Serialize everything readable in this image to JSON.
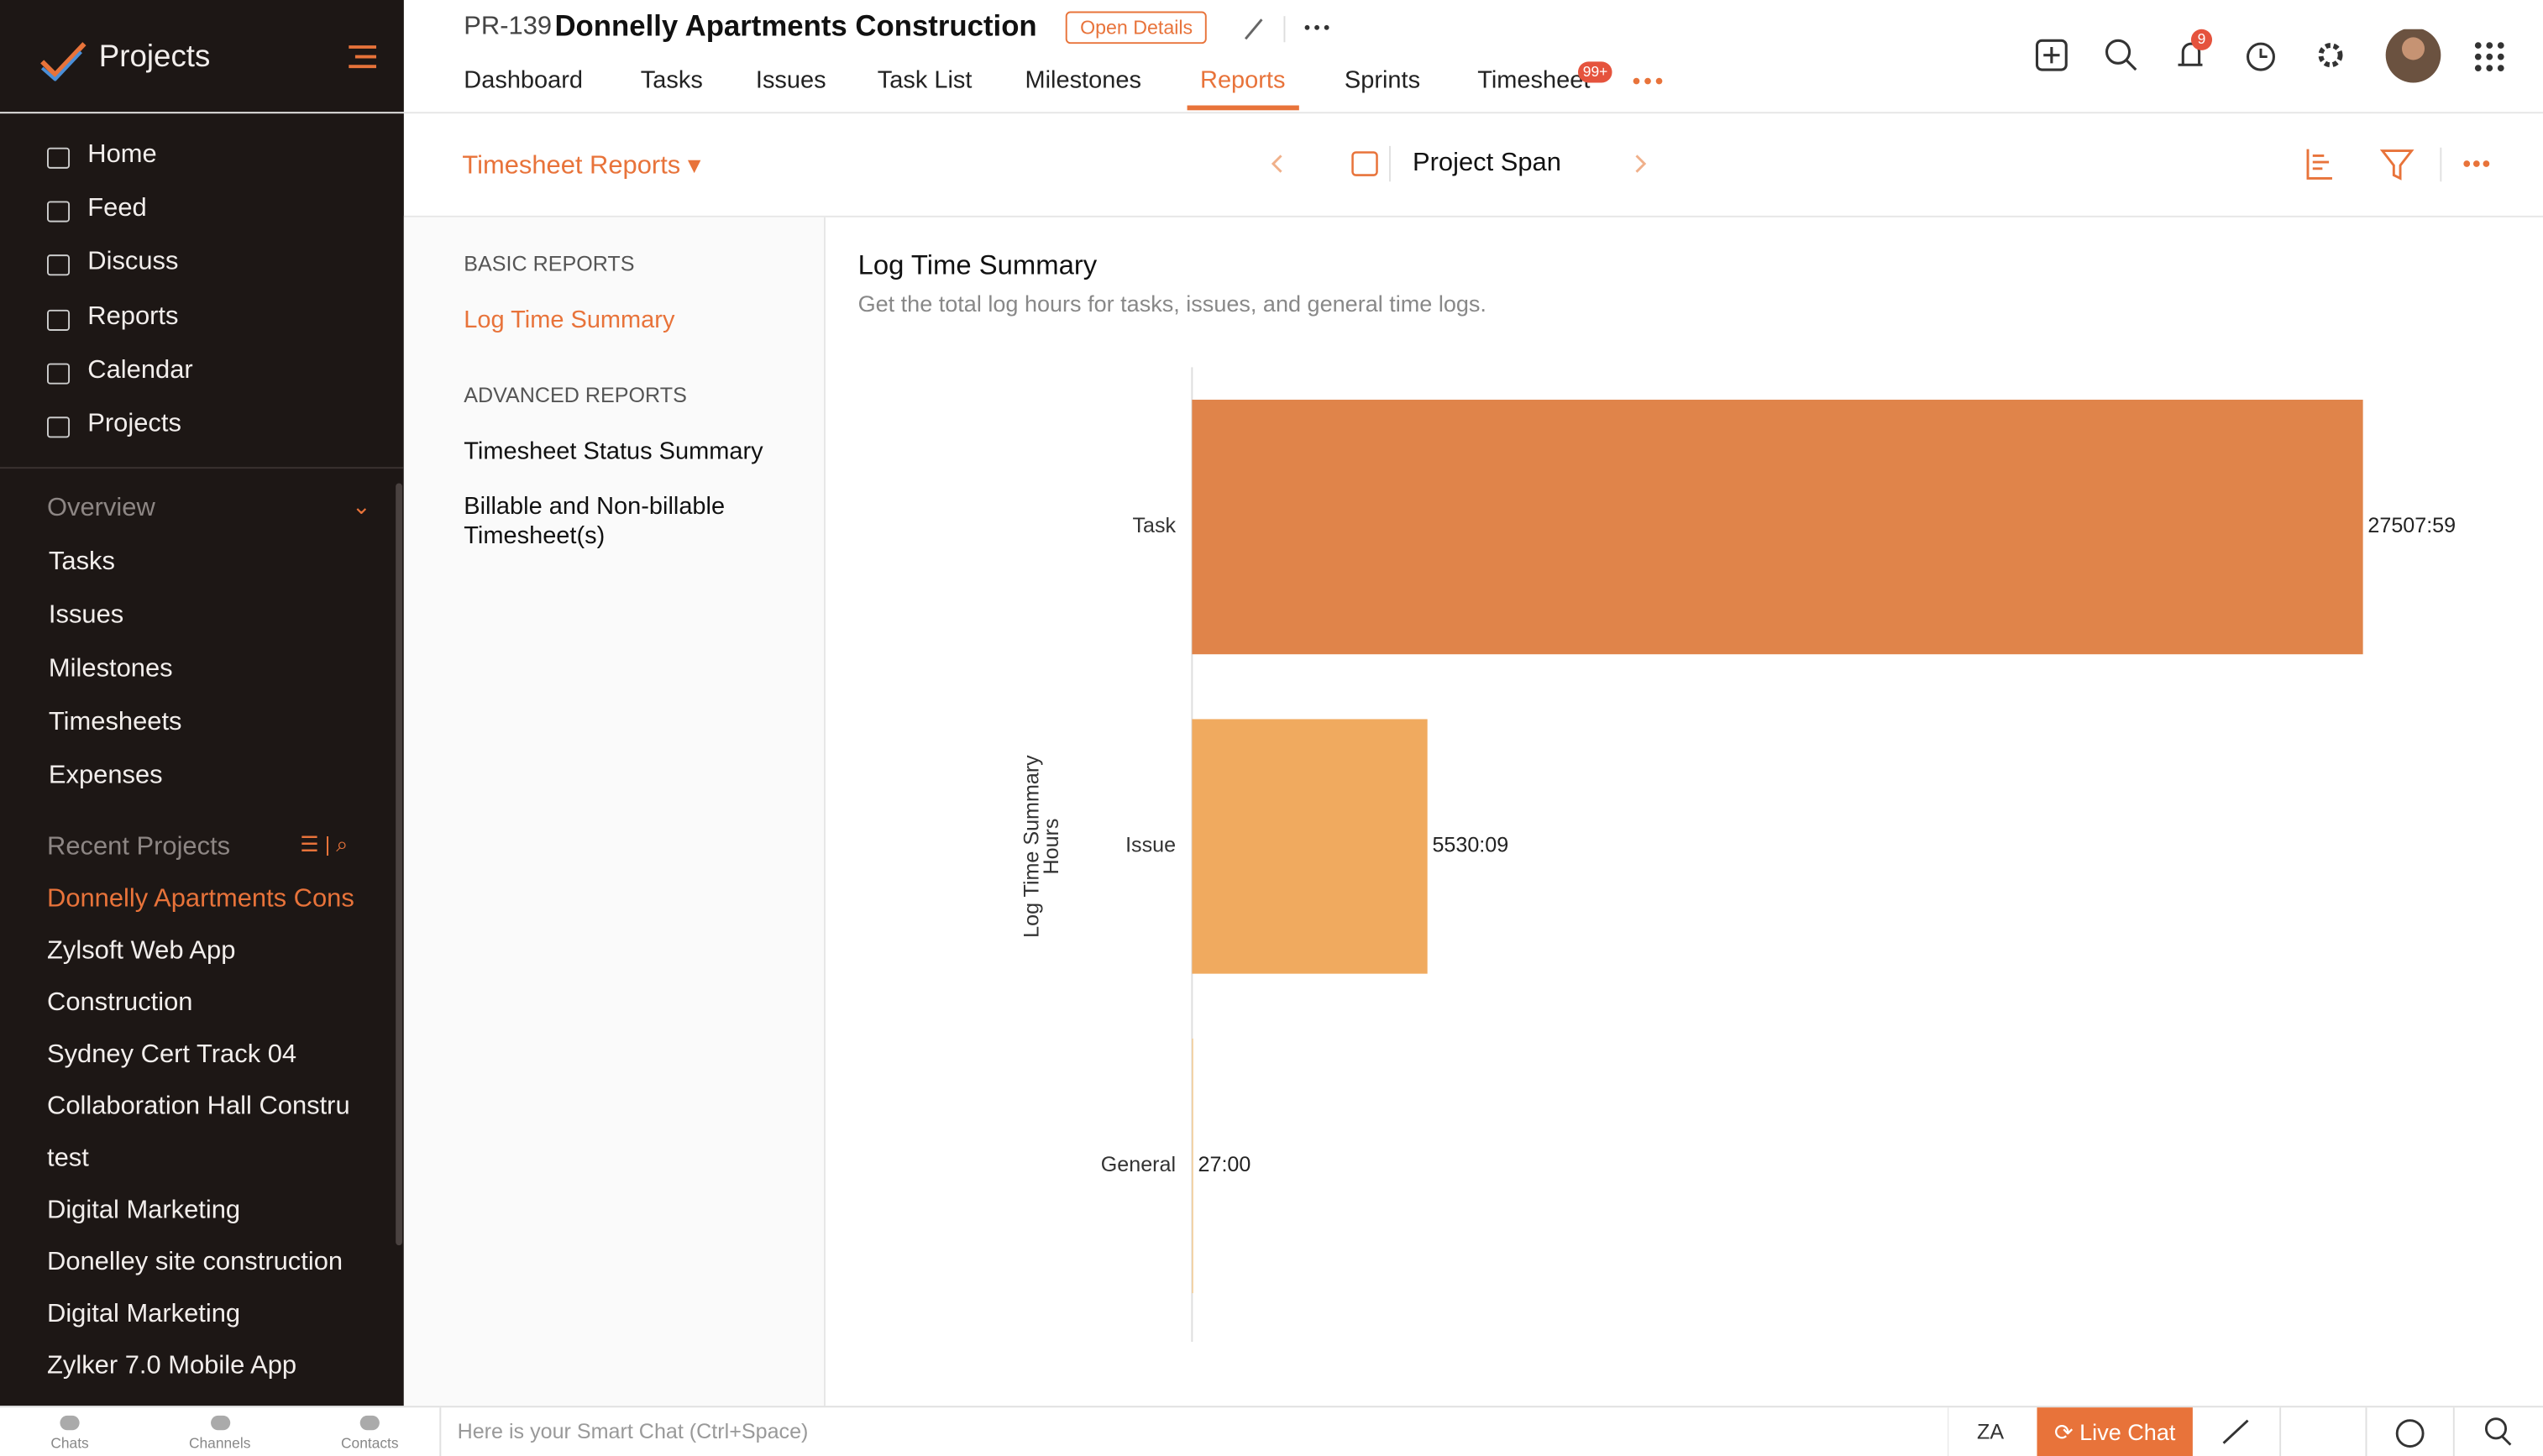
{
  "sidebar": {
    "brand": "Projects",
    "menu": [
      "Home",
      "Feed",
      "Discuss",
      "Reports",
      "Calendar",
      "Projects"
    ],
    "overview_title": "Overview",
    "overview": [
      "Tasks",
      "Issues",
      "Milestones",
      "Timesheets",
      "Expenses"
    ],
    "recent_title": "Recent Projects",
    "recent": [
      "Donnelly Apartments Cons",
      "Zylsoft Web App",
      "Construction",
      "Sydney Cert Track 04",
      "Collaboration Hall Constru",
      "test",
      "Digital Marketing",
      "Donelley site construction",
      "Digital Marketing",
      "Zylker 7.0 Mobile App"
    ]
  },
  "header": {
    "project_id": "PR-139",
    "project_name": "Donnelly Apartments Construction",
    "open_details": "Open Details",
    "tabs": [
      "Dashboard",
      "Tasks",
      "Issues",
      "Task List",
      "Milestones",
      "Reports",
      "Sprints",
      "Timesheet"
    ],
    "active_tab": "Reports",
    "timesheet_badge": "99+",
    "notification_count": "9"
  },
  "toolbar": {
    "report_menu": "Timesheet Reports",
    "period": "Project Span"
  },
  "report_nav": {
    "basic_title": "BASIC REPORTS",
    "basic": [
      "Log Time Summary"
    ],
    "advanced_title": "ADVANCED REPORTS",
    "advanced": [
      "Timesheet Status Summary",
      "Billable and Non-billable Timesheet(s)"
    ]
  },
  "bottom_bar": {
    "tabs": [
      "Chats",
      "Channels",
      "Contacts"
    ],
    "smart_chat_placeholder": "Here is your Smart Chat (Ctrl+Space)",
    "live_chat": "Live Chat"
  },
  "chart_data": {
    "type": "bar",
    "orientation": "horizontal",
    "title": "Log Time Summary",
    "subtitle": "Get the total log hours for tasks, issues, and general time logs.",
    "axis_label_lines": [
      "Log Time Summary",
      "Hours"
    ],
    "categories": [
      "Task",
      "Issue",
      "General"
    ],
    "values": [
      27507.98,
      5530.15,
      27
    ],
    "value_labels": [
      "27507:59",
      "5530:09",
      "27:00"
    ],
    "colors": [
      "#e0844a",
      "#f0aa5f",
      "#f5c98a"
    ],
    "xlim": [
      0,
      30000
    ]
  }
}
